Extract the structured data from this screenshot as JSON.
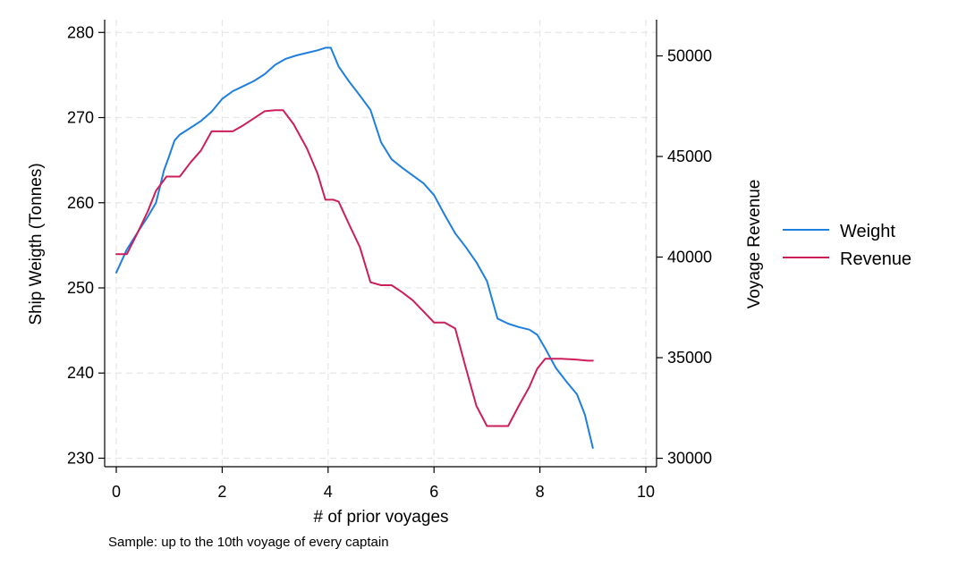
{
  "chart_data": {
    "type": "line",
    "title": "",
    "xlabel": "# of prior voyages",
    "ylabel": "Ship Weigth (Tonnes)",
    "y2label": "Voyage Revenue",
    "note": "Sample: up to the 10th voyage of every captain",
    "xlim": [
      0,
      10
    ],
    "ylim": [
      229,
      281.5
    ],
    "y2lim": [
      29580,
      51800
    ],
    "xticks": [
      0,
      2,
      4,
      6,
      8,
      10
    ],
    "yticks": [
      230,
      240,
      250,
      260,
      270,
      280
    ],
    "y2ticks": [
      30000,
      35000,
      40000,
      45000,
      50000
    ],
    "grid": true,
    "legend": {
      "position": "right",
      "entries": [
        "Weight",
        "Revenue"
      ]
    },
    "colors": {
      "weight": "#1f7fe0",
      "revenue": "#cc1f5a",
      "grid": "#e6e6e6"
    },
    "series": [
      {
        "name": "Weight",
        "axis": "left",
        "color": "#1f7fe0",
        "x": [
          0,
          0.2,
          0.4,
          0.6,
          0.75,
          0.9,
          1.0,
          1.1,
          1.2,
          1.4,
          1.6,
          1.8,
          2.0,
          2.2,
          2.4,
          2.6,
          2.8,
          3.0,
          3.2,
          3.4,
          3.6,
          3.8,
          3.95,
          4.05,
          4.2,
          4.4,
          4.6,
          4.8,
          5.0,
          5.2,
          5.4,
          5.6,
          5.8,
          6.0,
          6.2,
          6.4,
          6.6,
          6.8,
          7.0,
          7.2,
          7.4,
          7.6,
          7.8,
          7.95,
          8.1,
          8.3,
          8.5,
          8.7,
          8.85,
          9.0
        ],
        "values": [
          251.8,
          254.5,
          256.5,
          258.4,
          260.0,
          263.8,
          265.5,
          267.3,
          268.0,
          268.8,
          269.6,
          270.7,
          272.2,
          273.1,
          273.7,
          274.3,
          275.1,
          276.2,
          276.9,
          277.3,
          277.6,
          277.9,
          278.2,
          278.2,
          276.0,
          274.2,
          272.6,
          270.9,
          267.1,
          265.1,
          264.1,
          263.2,
          262.3,
          260.9,
          258.6,
          256.4,
          254.8,
          253.0,
          250.8,
          246.4,
          245.8,
          245.4,
          245.1,
          244.5,
          242.9,
          240.6,
          239.0,
          237.5,
          235.1,
          231.2
        ]
      },
      {
        "name": "Revenue",
        "axis": "right",
        "color": "#cc1f5a",
        "x": [
          0,
          0.2,
          0.4,
          0.6,
          0.75,
          0.95,
          1.2,
          1.4,
          1.6,
          1.8,
          2.0,
          2.2,
          2.4,
          2.6,
          2.8,
          3.0,
          3.15,
          3.35,
          3.6,
          3.8,
          3.95,
          4.1,
          4.2,
          4.4,
          4.6,
          4.8,
          5.0,
          5.2,
          5.4,
          5.6,
          5.8,
          6.0,
          6.2,
          6.4,
          6.6,
          6.8,
          7.0,
          7.2,
          7.4,
          7.6,
          7.8,
          7.95,
          8.1,
          8.4,
          8.7,
          8.9,
          9.0
        ],
        "values": [
          40150,
          40150,
          41200,
          42300,
          43300,
          44000,
          44000,
          44700,
          45300,
          46250,
          46250,
          46250,
          46550,
          46900,
          47250,
          47300,
          47300,
          46600,
          45400,
          44150,
          42850,
          42850,
          42750,
          41600,
          40500,
          38750,
          38600,
          38600,
          38250,
          37850,
          37300,
          36750,
          36750,
          36450,
          34500,
          32600,
          31600,
          31600,
          31600,
          32600,
          33550,
          34450,
          34950,
          34950,
          34900,
          34850,
          34850
        ]
      }
    ]
  }
}
